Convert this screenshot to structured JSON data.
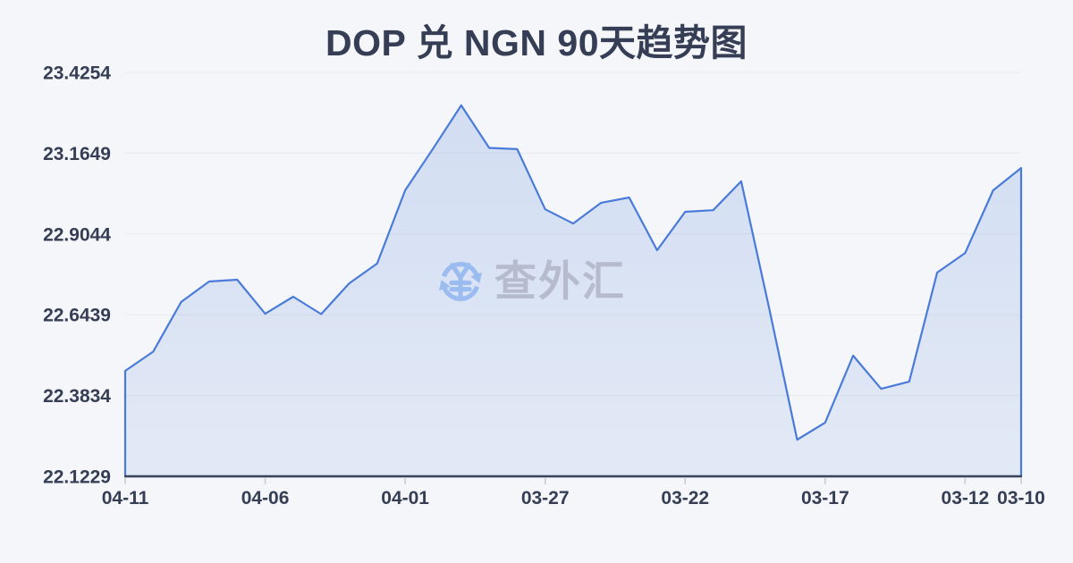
{
  "page": {
    "background": "#f4f6f9"
  },
  "watermark": {
    "text": "查外汇",
    "icon": "currency-exchange-icon",
    "icon_color": "#9abcf0",
    "text_color": "#b6bccd"
  },
  "chart_data": {
    "type": "area",
    "title": "DOP 兑 NGN 90天趋势图",
    "x": [
      "04-11",
      "04-10",
      "04-09",
      "04-08",
      "04-07",
      "04-06",
      "04-05",
      "04-04",
      "04-03",
      "04-02",
      "04-01",
      "03-31",
      "03-30",
      "03-29",
      "03-28",
      "03-27",
      "03-26",
      "03-25",
      "03-24",
      "03-23",
      "03-22",
      "03-21",
      "03-20",
      "03-19",
      "03-18",
      "03-17",
      "03-16",
      "03-15",
      "03-14",
      "03-13",
      "03-12",
      "03-11",
      "03-10"
    ],
    "values": [
      22.463,
      22.525,
      22.685,
      22.751,
      22.757,
      22.647,
      22.702,
      22.646,
      22.745,
      22.809,
      23.045,
      23.18,
      23.319,
      23.182,
      23.178,
      22.984,
      22.938,
      23.005,
      23.022,
      22.852,
      22.976,
      22.981,
      23.074,
      22.665,
      22.241,
      22.296,
      22.512,
      22.405,
      22.428,
      22.78,
      22.843,
      23.045,
      23.117
    ],
    "y_tick_labels": [
      "23.4254",
      "23.1649",
      "22.9044",
      "22.6439",
      "22.3834",
      "22.1229"
    ],
    "x_tick_labels": [
      "04-11",
      "04-06",
      "04-01",
      "03-27",
      "03-22",
      "03-17",
      "03-12",
      "03-10"
    ],
    "x_tick_indices": [
      0,
      5,
      10,
      15,
      20,
      25,
      30,
      32
    ],
    "ylim": [
      22.1229,
      23.4254
    ],
    "x_reversed_time": true,
    "grid": true,
    "legend": "none",
    "line_color": "#4a7bd9",
    "area_color_top": "rgba(74,123,217,0.20)",
    "area_color_bottom": "rgba(74,123,217,0.10)",
    "axis_line_color": "#3b4459",
    "grid_color": "#e7eaf0",
    "tick_color": "#c9cdd6",
    "label_color": "#353e54"
  }
}
